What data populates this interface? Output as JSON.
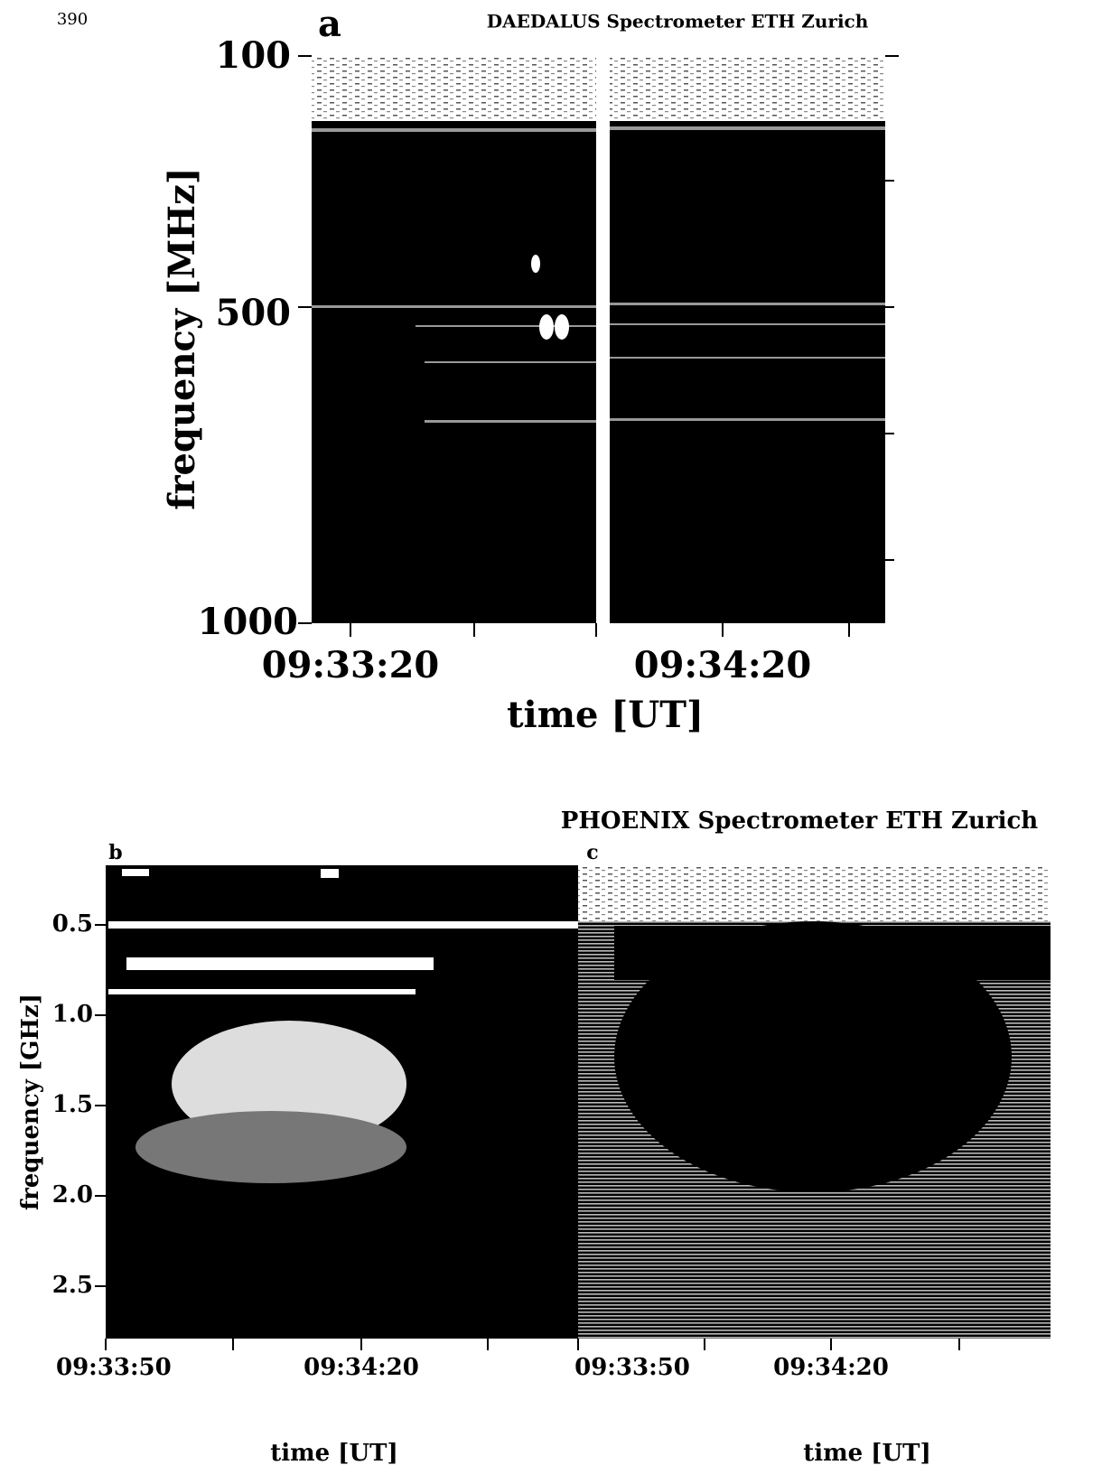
{
  "page_number": "390",
  "panel_a": {
    "label": "a",
    "title": "DAEDALUS Spectrometer ETH Zurich",
    "y_axis_label": "frequency [MHz]",
    "y_tick_labels": [
      "100",
      "500",
      "1000"
    ],
    "x_tick_labels": [
      "09:33:20",
      "09:34:20"
    ],
    "x_axis_label": "time [UT]"
  },
  "panel_bc": {
    "title": "PHOENIX Spectrometer ETH Zurich",
    "y_axis_label": "frequency [GHz]",
    "y_tick_labels": [
      "0.5",
      "1.0",
      "1.5",
      "2.0",
      "2.5"
    ],
    "panel_b": {
      "label": "b",
      "x_tick_labels": [
        "09:33:50",
        "09:34:20"
      ],
      "x_axis_label": "time [UT]"
    },
    "panel_c": {
      "label": "c",
      "x_tick_labels": [
        "09:33:50",
        "09:34:20"
      ],
      "x_axis_label": "time [UT]"
    }
  }
}
